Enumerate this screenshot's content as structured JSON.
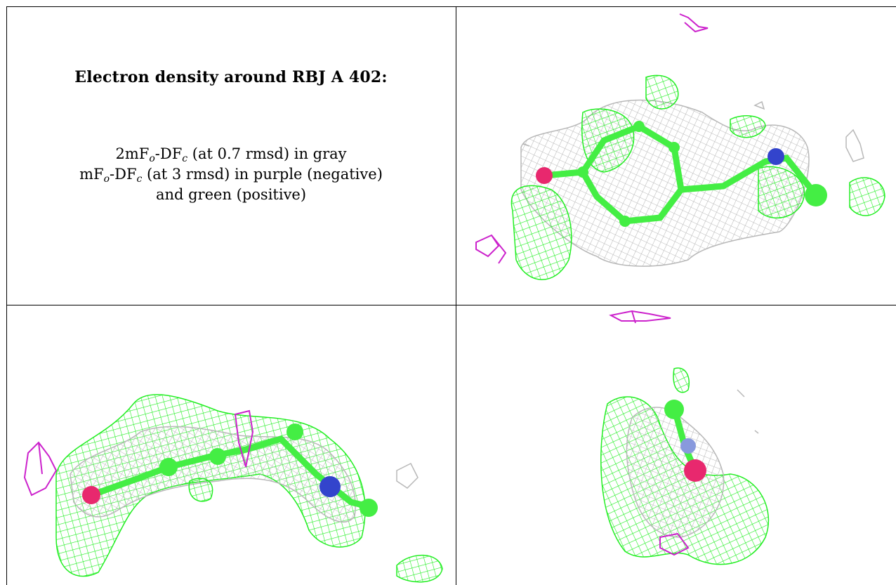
{
  "caption": {
    "title": "Electron density around RBJ A 402:",
    "line1": {
      "prefix": "2mF",
      "sub1": "o",
      "mid": "-DF",
      "sub2": "c",
      "suffix": " (at 0.7 rmsd) in gray"
    },
    "line2": {
      "prefix": "mF",
      "sub1": "o",
      "mid": "-DF",
      "sub2": "c",
      "suffix": " (at 3 rmsd) in purple (negative)"
    },
    "line3": "and green (positive)"
  },
  "colors": {
    "gray_mesh": "#b8b8b8",
    "green_mesh": "#22ee22",
    "purple_mesh": "#cc22cc",
    "green_atom": "#44ee44",
    "red_atom": "#e8286e",
    "blue_atom": "#3344cc",
    "border": "#000000"
  },
  "panels": [
    {
      "name": "view-top-right"
    },
    {
      "name": "view-bottom-left"
    },
    {
      "name": "view-bottom-right"
    }
  ]
}
